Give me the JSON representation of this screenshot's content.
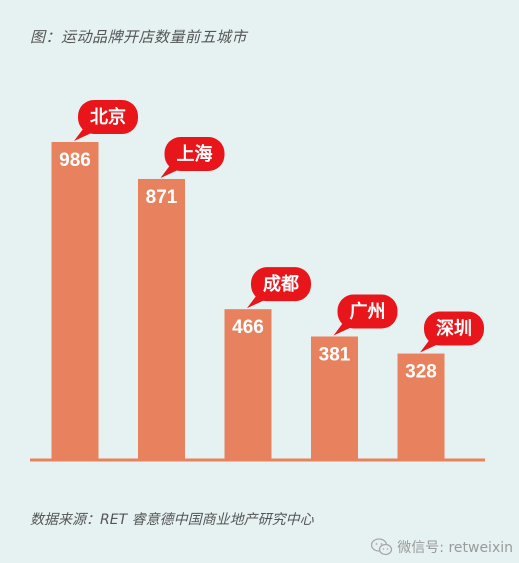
{
  "title": "图：运动品牌开店数量前五城市",
  "source": "数据来源：RET 睿意德中国商业地产研究中心",
  "watermark": "微信号: retweixin",
  "colors": {
    "bar": "#e8825e",
    "bubble": "#e8151b",
    "background": "#e6f2f2",
    "axis": "#e8825e"
  },
  "chart_data": {
    "type": "bar",
    "title": "图：运动品牌开店数量前五城市",
    "categories": [
      "北京",
      "上海",
      "成都",
      "广州",
      "深圳"
    ],
    "values": [
      986,
      871,
      466,
      381,
      328
    ],
    "ylim": [
      0,
      1000
    ],
    "grid": false,
    "legend": "none"
  }
}
